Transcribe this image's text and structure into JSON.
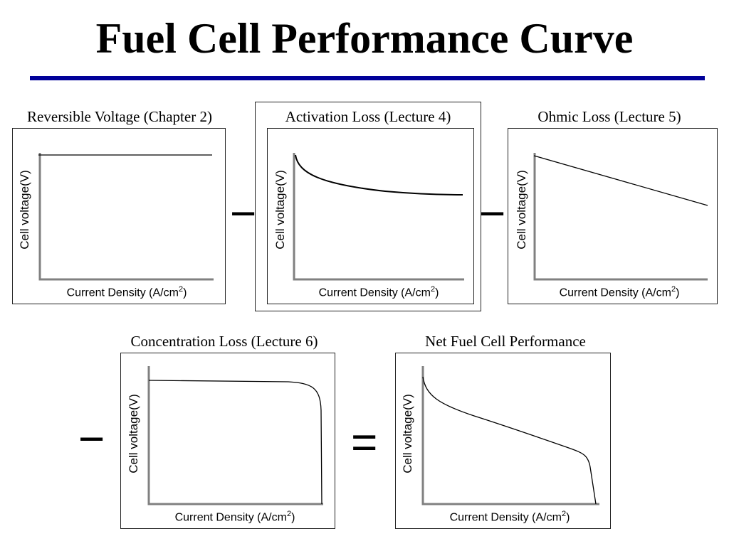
{
  "slide": {
    "title": "Fuel Cell Performance Curve",
    "title_rule_color": "#000099"
  },
  "axes": {
    "ylabel": "Cell voltage(V)",
    "xlabel": "Current Density (A/cm",
    "xlabel_superscript": "2",
    "xlabel_close": ")"
  },
  "panels": [
    {
      "id": "reversible",
      "caption": "Reversible Voltage (Chapter 2)",
      "curve_shape": "flat horizontal line"
    },
    {
      "id": "activation",
      "caption": "Activation Loss (Lecture 4)",
      "curve_shape": "logarithmic decay",
      "highlighted": true
    },
    {
      "id": "ohmic",
      "caption": "Ohmic Loss (Lecture 5)",
      "curve_shape": "linear decrease"
    },
    {
      "id": "concentration",
      "caption": "Concentration Loss (Lecture 6)",
      "curve_shape": "flat then sharp drop"
    },
    {
      "id": "net",
      "caption": "Net Fuel Cell Performance",
      "curve_shape": "combined polarization curve"
    }
  ],
  "operators": {
    "minus": "−",
    "equals": "="
  }
}
